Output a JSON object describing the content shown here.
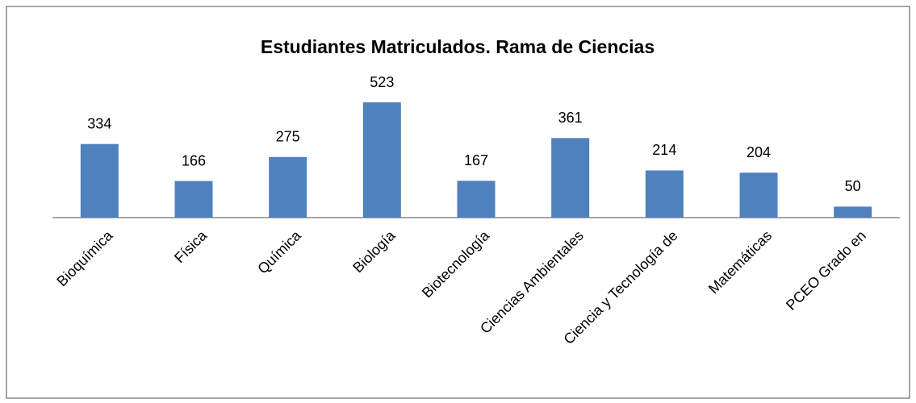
{
  "chart_data": {
    "type": "bar",
    "title": "Estudiantes Matriculados. Rama de Ciencias",
    "categories": [
      "Bioquímica",
      "Física",
      "Química",
      "Biología",
      "Biotecnología",
      "Ciencias Ambientales",
      "Ciencia y Tecnología de",
      "Matemáticas",
      "PCEO Grado en"
    ],
    "values": [
      334,
      166,
      275,
      523,
      167,
      361,
      214,
      204,
      50
    ],
    "color": "#4f81bd"
  }
}
